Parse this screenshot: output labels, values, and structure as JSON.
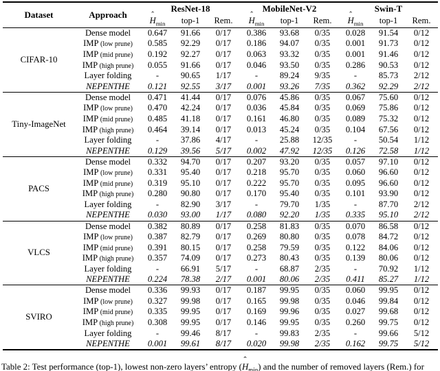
{
  "header": {
    "dataset_label": "Dataset",
    "approach_label": "Approach",
    "model_groups": [
      "ResNet-18",
      "MobileNet-V2",
      "Swin-T"
    ],
    "metric": {
      "hmin_base": "H",
      "hmin_hat": "ˆ",
      "hmin_sub": "min"
    },
    "top1_label": "top-1",
    "rem_label": "Rem."
  },
  "approaches": [
    {
      "label": "Dense model",
      "note": "",
      "italic": false
    },
    {
      "label": "IMP",
      "note": "(low prune)",
      "italic": false
    },
    {
      "label": "IMP",
      "note": "(mid prune)",
      "italic": false
    },
    {
      "label": "IMP",
      "note": "(high prune)",
      "italic": false
    },
    {
      "label": "Layer folding",
      "note": "",
      "italic": false
    },
    {
      "label": "NEPENTHE",
      "note": "",
      "italic": true
    }
  ],
  "datasets": [
    {
      "name": "CIFAR-10",
      "rows": [
        [
          "0.647",
          "91.66",
          "0/17",
          "0.386",
          "93.68",
          "0/35",
          "0.028",
          "91.54",
          "0/12"
        ],
        [
          "0.585",
          "92.29",
          "0/17",
          "0.186",
          "94.07",
          "0/35",
          "0.001",
          "91.73",
          "0/12"
        ],
        [
          "0.192",
          "92.27",
          "0/17",
          "0.063",
          "93.32",
          "0/35",
          "0.001",
          "91.46",
          "0/12"
        ],
        [
          "0.055",
          "91.66",
          "0/17",
          "0.046",
          "93.50",
          "0/35",
          "0.286",
          "90.53",
          "0/12"
        ],
        [
          "-",
          "90.65",
          "1/17",
          "-",
          "89.24",
          "9/35",
          "-",
          "85.73",
          "2/12"
        ],
        [
          "0.121",
          "92.55",
          "3/17",
          "0.001",
          "93.26",
          "7/35",
          "0.362",
          "92.29",
          "2/12"
        ]
      ]
    },
    {
      "name": "Tiny-ImageNet",
      "rows": [
        [
          "0.471",
          "41.44",
          "0/17",
          "0.076",
          "45.86",
          "0/35",
          "0.067",
          "75.60",
          "0/12"
        ],
        [
          "0.470",
          "42.24",
          "0/17",
          "0.036",
          "45.84",
          "0/35",
          "0.069",
          "75.86",
          "0/12"
        ],
        [
          "0.485",
          "41.18",
          "0/17",
          "0.161",
          "46.80",
          "0/35",
          "0.089",
          "75.32",
          "0/12"
        ],
        [
          "0.464",
          "39.14",
          "0/17",
          "0.013",
          "45.24",
          "0/35",
          "0.104",
          "67.56",
          "0/12"
        ],
        [
          "-",
          "37.86",
          "4/17",
          "-",
          "25.88",
          "12/35",
          "-",
          "50.54",
          "1/12"
        ],
        [
          "0.129",
          "39.56",
          "5/17",
          "0.002",
          "47.92",
          "12/35",
          "0.126",
          "72.58",
          "1/12"
        ]
      ]
    },
    {
      "name": "PACS",
      "rows": [
        [
          "0.332",
          "94.70",
          "0/17",
          "0.207",
          "93.20",
          "0/35",
          "0.057",
          "97.10",
          "0/12"
        ],
        [
          "0.331",
          "95.40",
          "0/17",
          "0.218",
          "95.70",
          "0/35",
          "0.060",
          "96.60",
          "0/12"
        ],
        [
          "0.319",
          "95.10",
          "0/17",
          "0.222",
          "95.70",
          "0/35",
          "0.095",
          "96.60",
          "0/12"
        ],
        [
          "0.280",
          "90.80",
          "0/17",
          "0.170",
          "95.40",
          "0/35",
          "0.101",
          "93.90",
          "0/12"
        ],
        [
          "-",
          "82.90",
          "3/17",
          "-",
          "79.70",
          "1/35",
          "-",
          "87.70",
          "2/12"
        ],
        [
          "0.030",
          "93.00",
          "1/17",
          "0.080",
          "92.20",
          "1/35",
          "0.335",
          "95.10",
          "2/12"
        ]
      ]
    },
    {
      "name": "VLCS",
      "rows": [
        [
          "0.382",
          "80.89",
          "0/17",
          "0.258",
          "81.83",
          "0/35",
          "0.070",
          "86.58",
          "0/12"
        ],
        [
          "0.387",
          "82.79",
          "0/17",
          "0.269",
          "80.80",
          "0/35",
          "0.078",
          "84.72",
          "0/12"
        ],
        [
          "0.391",
          "80.15",
          "0/17",
          "0.258",
          "79.59",
          "0/35",
          "0.122",
          "84.06",
          "0/12"
        ],
        [
          "0.357",
          "74.09",
          "0/17",
          "0.273",
          "80.43",
          "0/35",
          "0.139",
          "80.06",
          "0/12"
        ],
        [
          "-",
          "66.91",
          "5/17",
          "-",
          "68.87",
          "2/35",
          "-",
          "70.92",
          "1/12"
        ],
        [
          "0.224",
          "78.38",
          "2/17",
          "0.001",
          "80.06",
          "2/35",
          "0.411",
          "85.27",
          "1/12"
        ]
      ]
    },
    {
      "name": "SVIRO",
      "rows": [
        [
          "0.336",
          "99.93",
          "0/17",
          "0.187",
          "99.95",
          "0/35",
          "0.060",
          "99.95",
          "0/12"
        ],
        [
          "0.327",
          "99.98",
          "0/17",
          "0.165",
          "99.98",
          "0/35",
          "0.046",
          "99.84",
          "0/12"
        ],
        [
          "0.335",
          "99.95",
          "0/17",
          "0.169",
          "99.96",
          "0/35",
          "0.027",
          "99.68",
          "0/12"
        ],
        [
          "0.308",
          "99.95",
          "0/17",
          "0.146",
          "99.95",
          "0/35",
          "0.260",
          "99.75",
          "0/12"
        ],
        [
          "-",
          "99.46",
          "8/17",
          "-",
          "99.83",
          "2/35",
          "-",
          "99.66",
          "5/12"
        ],
        [
          "0.001",
          "99.61",
          "8/17",
          "0.020",
          "99.98",
          "2/35",
          "0.162",
          "99.75",
          "5/12"
        ]
      ]
    }
  ],
  "caption": {
    "prefix": "Table 2: Test performance (top-1), lowest non-zero layers’ entropy (",
    "suffix": ") and the number of removed layers (Rem.) for"
  }
}
